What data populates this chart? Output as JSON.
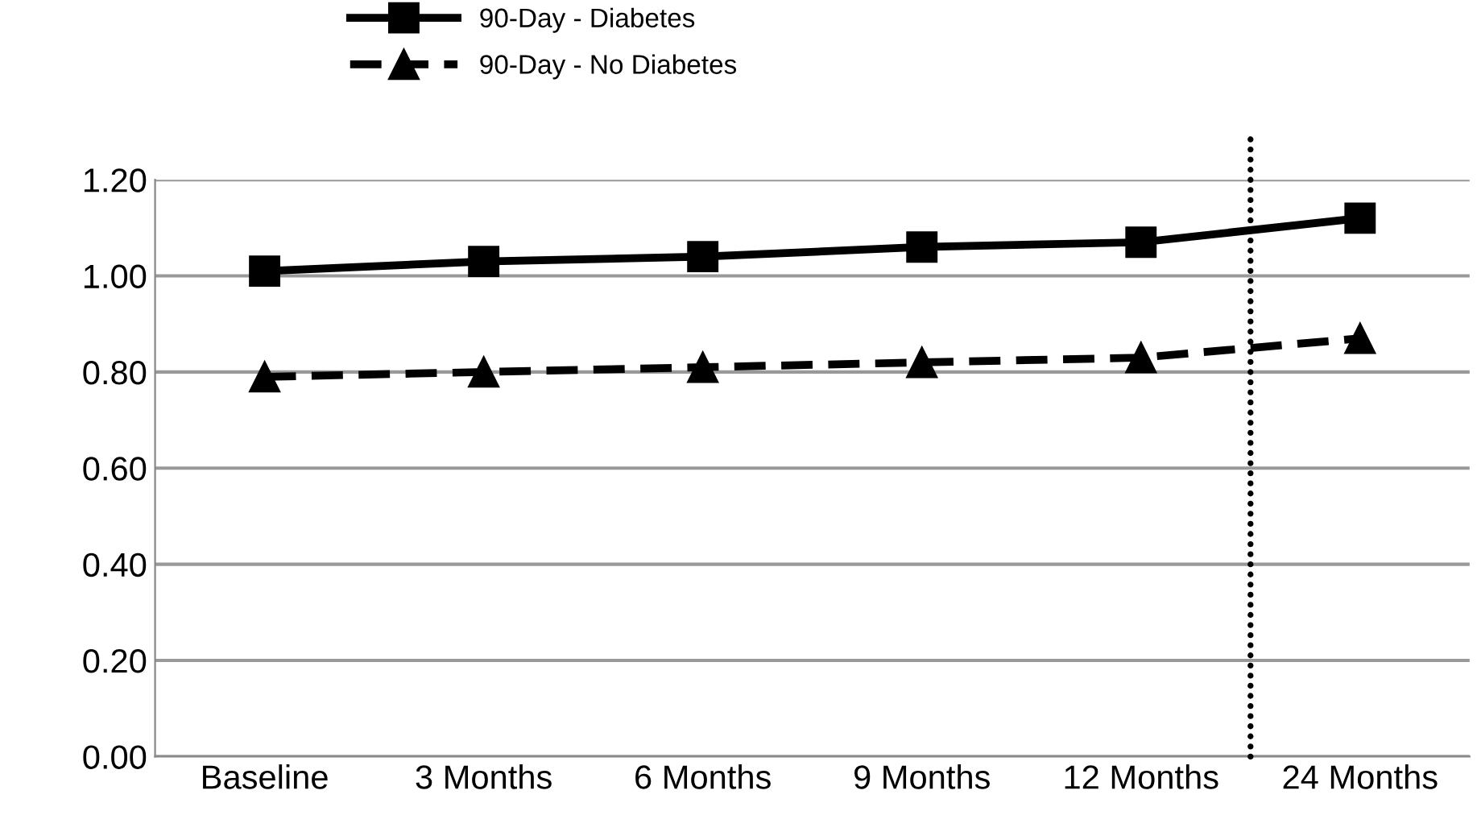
{
  "chart_data": {
    "type": "line",
    "categories": [
      "Baseline",
      "3 Months",
      "6 Months",
      "9 Months",
      "12 Months",
      "24 Months"
    ],
    "series": [
      {
        "name": "90-Day - Diabetes",
        "color": "#000000",
        "marker": "square",
        "line_style": "solid",
        "values": [
          1.01,
          1.03,
          1.04,
          1.06,
          1.07,
          1.12
        ]
      },
      {
        "name": "90-Day - No Diabetes",
        "color": "#000000",
        "marker": "triangle",
        "line_style": "dashed",
        "values": [
          0.79,
          0.8,
          0.81,
          0.82,
          0.83,
          0.87
        ]
      }
    ],
    "ylim": [
      0,
      1.2
    ],
    "yticks": [
      {
        "value": 0,
        "label": "0.00"
      },
      {
        "value": 0.2,
        "label": "0.20"
      },
      {
        "value": 0.4,
        "label": "0.40"
      },
      {
        "value": 0.6,
        "label": "0.60"
      },
      {
        "value": 0.8,
        "label": "0.80"
      },
      {
        "value": 1.0,
        "label": "1.00"
      },
      {
        "value": 1.2,
        "label": "1.20"
      }
    ],
    "grid": "y",
    "legend": "top"
  }
}
